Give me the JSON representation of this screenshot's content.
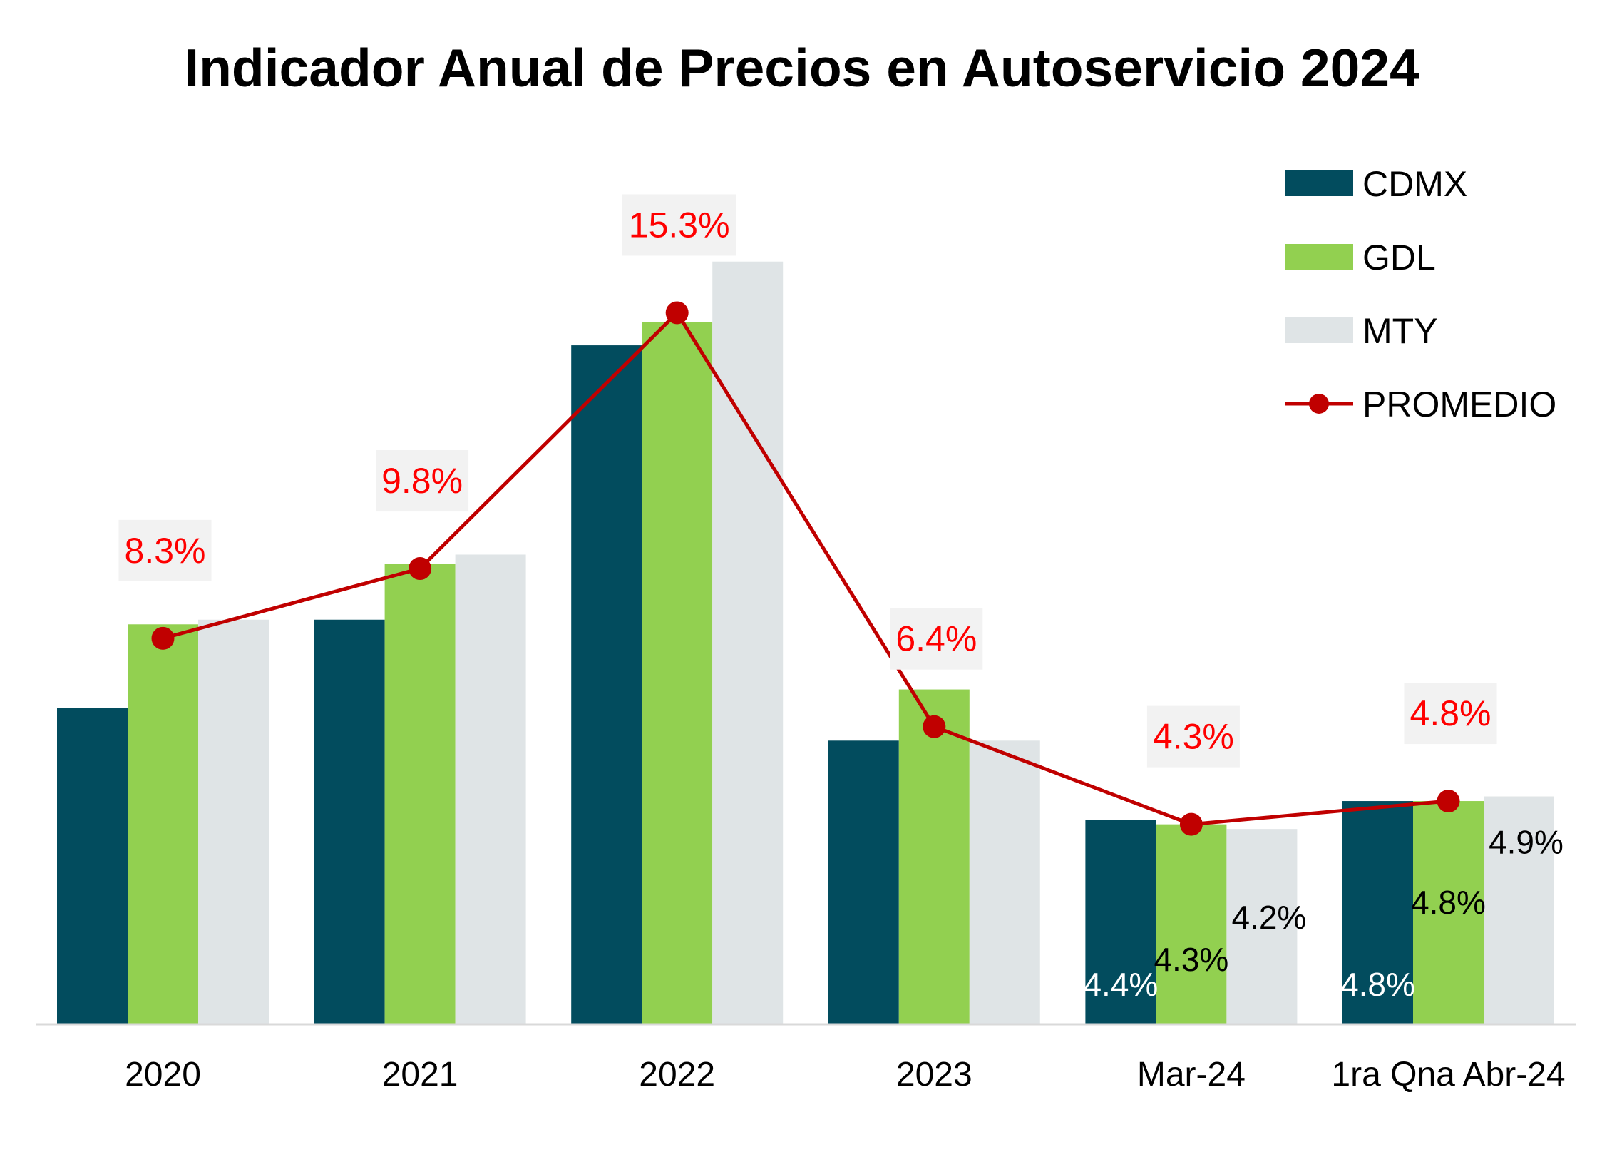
{
  "chart_data": {
    "type": "bar",
    "title": "Indicador Anual de Precios en Autoservicio 2024",
    "categories": [
      "2020",
      "2021",
      "2022",
      "2023",
      "Mar-24",
      "1ra Qna Abr-24"
    ],
    "series": [
      {
        "name": "CDMX",
        "type": "bar",
        "color": "#024c5e",
        "values": [
          6.8,
          8.7,
          14.6,
          6.1,
          4.4,
          4.8
        ],
        "labels": [
          null,
          null,
          null,
          null,
          "4.4%",
          "4.8%"
        ],
        "label_color": "#ffffff"
      },
      {
        "name": "GDL",
        "type": "bar",
        "color": "#92d050",
        "values": [
          8.6,
          9.9,
          15.1,
          7.2,
          4.3,
          4.8
        ],
        "labels": [
          null,
          null,
          null,
          null,
          "4.3%",
          "4.8%"
        ],
        "label_color": "#000000"
      },
      {
        "name": "MTY",
        "type": "bar",
        "color": "#dfe4e6",
        "values": [
          8.7,
          10.1,
          16.4,
          6.1,
          4.2,
          4.9
        ],
        "labels": [
          null,
          null,
          null,
          null,
          "4.2%",
          "4.9%"
        ],
        "label_color": "#000000"
      },
      {
        "name": "PROMEDIO",
        "type": "line",
        "color": "#c00000",
        "values": [
          8.3,
          9.8,
          15.3,
          6.4,
          4.3,
          4.8
        ],
        "labels": [
          "8.3%",
          "9.8%",
          "15.3%",
          "6.4%",
          "4.3%",
          "4.8%"
        ],
        "label_color": "#ff0000",
        "label_background": "#f2f2f2"
      }
    ],
    "ylim": [
      0,
      22
    ],
    "grid": false,
    "legend_position": "top-right"
  }
}
